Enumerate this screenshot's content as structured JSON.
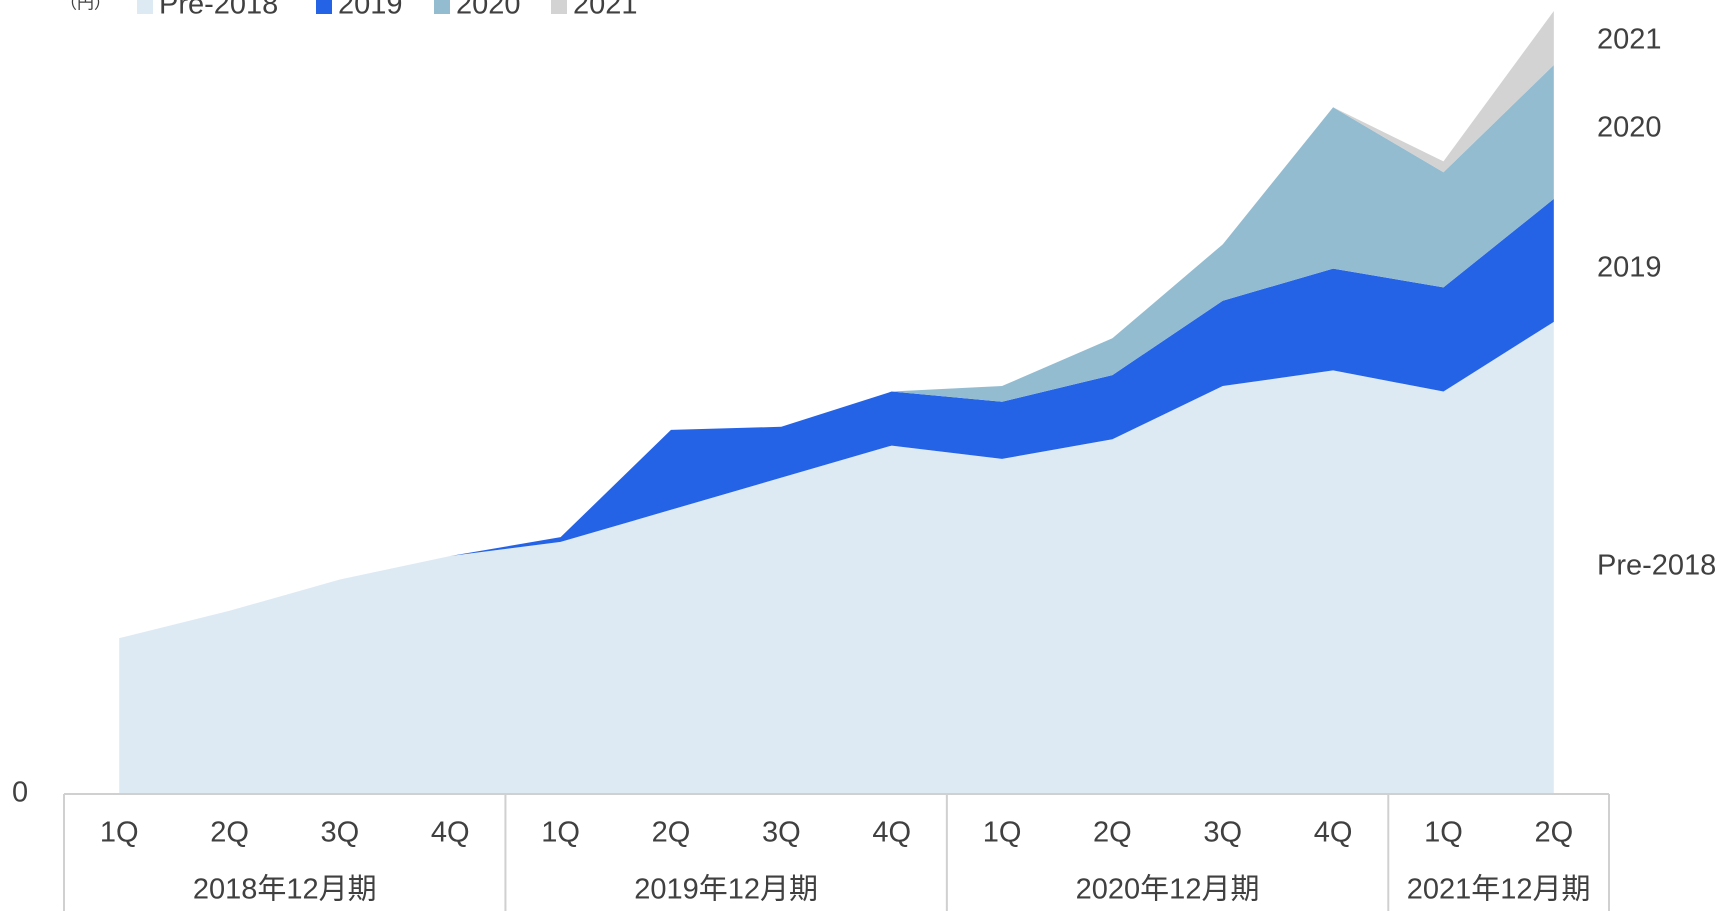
{
  "chart_data": {
    "type": "stacked-area",
    "unit_label": "（円）",
    "category_groups": [
      {
        "label": "2018年12月期",
        "categories": [
          "1Q",
          "2Q",
          "3Q",
          "4Q"
        ]
      },
      {
        "label": "2019年12月期",
        "categories": [
          "1Q",
          "2Q",
          "3Q",
          "4Q"
        ]
      },
      {
        "label": "2020年12月期",
        "categories": [
          "1Q",
          "2Q",
          "3Q",
          "4Q"
        ]
      },
      {
        "label": "2021年12月期",
        "categories": [
          "1Q",
          "2Q"
        ]
      }
    ],
    "series": [
      {
        "name": "Pre-2018",
        "color": "#ddeaf4",
        "values": [
          19.9,
          23.4,
          27.4,
          30.4,
          32.2,
          36.3,
          40.4,
          44.5,
          42.8,
          45.3,
          52.1,
          54.1,
          51.4,
          60.3
        ]
      },
      {
        "name": "2019",
        "color": "#2563e6",
        "values": [
          0,
          0,
          0,
          0,
          0.6,
          10.2,
          6.5,
          6.9,
          7.3,
          8.2,
          10.9,
          13.0,
          13.3,
          15.7
        ]
      },
      {
        "name": "2020",
        "color": "#94bcd1",
        "values": [
          0,
          0,
          0,
          0,
          0,
          0,
          0,
          0,
          2.0,
          4.7,
          7.2,
          20.6,
          14.7,
          17.1
        ]
      },
      {
        "name": "2021",
        "color": "#d3d3d3",
        "values": [
          0,
          0,
          0,
          0,
          0,
          0,
          0,
          0,
          0,
          0,
          0,
          0,
          1.4,
          6.9
        ]
      }
    ],
    "ylim": [
      0,
      100
    ],
    "yticks": [
      0
    ]
  }
}
